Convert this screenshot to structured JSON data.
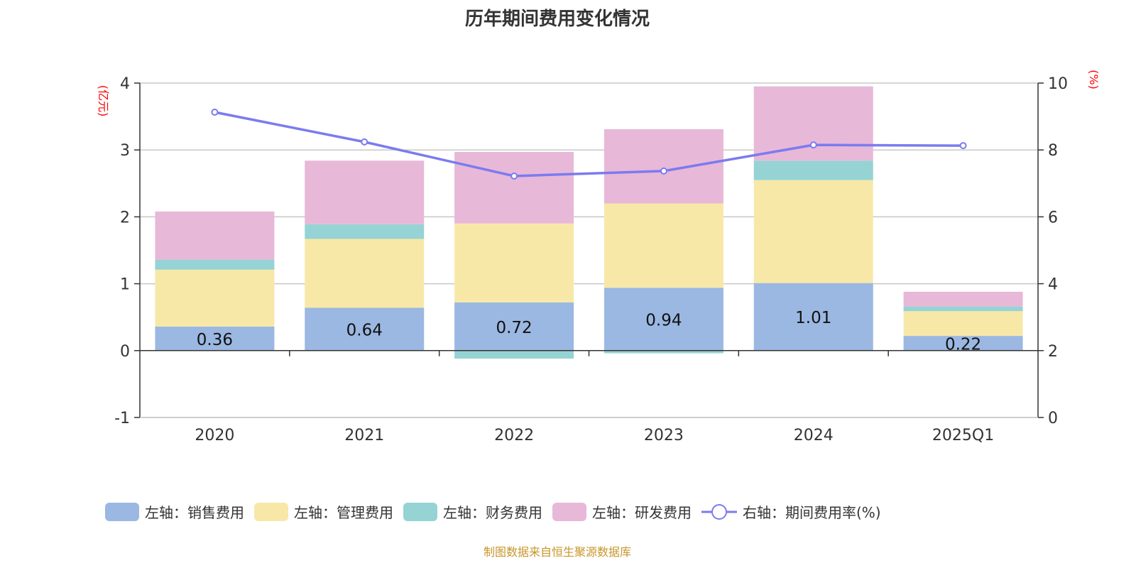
{
  "chart_data": {
    "type": "bar",
    "stacked": true,
    "title": "历年期间费用变化情况",
    "categories": [
      "2020",
      "2021",
      "2022",
      "2023",
      "2024",
      "2025Q1"
    ],
    "left_axis": {
      "label": "(亿元)",
      "ylim": [
        -1,
        4
      ],
      "ticks": [
        "-1",
        "0",
        "1",
        "2",
        "3",
        "4"
      ]
    },
    "right_axis": {
      "label": "(%)",
      "ylim": [
        0,
        10
      ],
      "ticks": [
        "0",
        "2",
        "4",
        "6",
        "8",
        "10"
      ]
    },
    "grid": true,
    "legend_position": "bottom",
    "series": [
      {
        "name": "左轴：销售费用",
        "axis": "left",
        "type": "bar",
        "color": "#9bb8e2",
        "values": [
          0.36,
          0.64,
          0.72,
          0.94,
          1.01,
          0.22
        ],
        "labels": [
          "0.36",
          "0.64",
          "0.72",
          "0.94",
          "1.01",
          "0.22"
        ]
      },
      {
        "name": "左轴：管理费用",
        "axis": "left",
        "type": "bar",
        "color": "#f8e8a8",
        "values": [
          0.85,
          1.03,
          1.18,
          1.26,
          1.54,
          0.37
        ]
      },
      {
        "name": "左轴：财务费用",
        "axis": "left",
        "type": "bar",
        "color": "#96d3d4",
        "values": [
          0.15,
          0.22,
          -0.12,
          -0.04,
          0.29,
          0.07
        ]
      },
      {
        "name": "左轴：研发费用",
        "axis": "left",
        "type": "bar",
        "color": "#e8b8d8",
        "values": [
          0.72,
          0.95,
          1.07,
          1.11,
          1.11,
          0.22
        ]
      },
      {
        "name": "右轴：期间费用率(%)",
        "axis": "right",
        "type": "line",
        "color": "#7b7bf0",
        "values": [
          9.13,
          8.24,
          7.22,
          7.37,
          8.15,
          8.13
        ]
      }
    ],
    "axis_label_color": "#ff0000"
  },
  "footer": "制图数据来自恒生聚源数据库"
}
